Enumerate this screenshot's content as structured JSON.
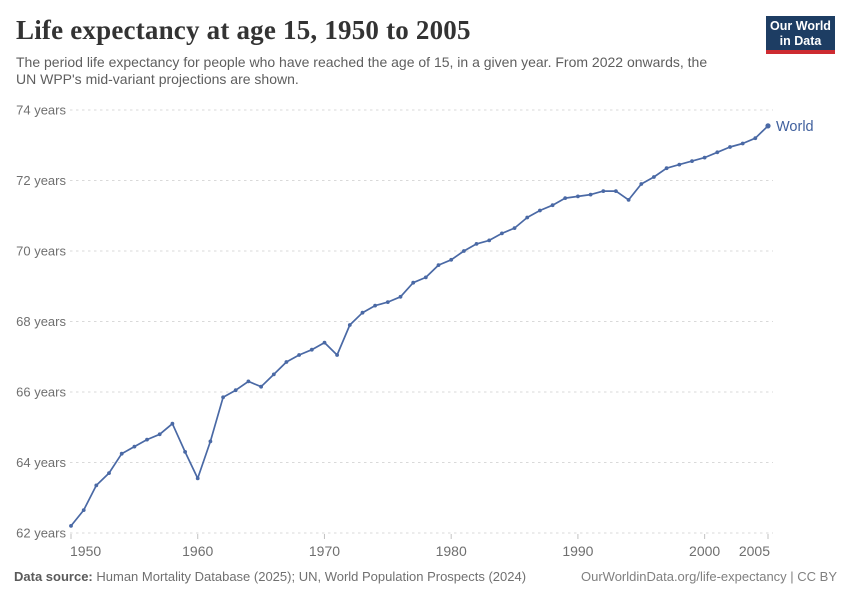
{
  "header": {
    "title": "Life expectancy at age 15, 1950 to 2005",
    "subtitle_line1": "The period life expectancy for people who have reached the age of 15, in a given year. From 2022 onwards, the",
    "subtitle_line2": "UN WPP's mid-variant projections are shown.",
    "logo": {
      "line1": "Our World",
      "line2": "in Data",
      "bg_color": "#1d3d63",
      "accent_color": "#cd2b31"
    }
  },
  "chart_data": {
    "type": "line",
    "title": "Life expectancy at age 15, 1950 to 2005",
    "xlabel": "",
    "ylabel": "",
    "xlim": [
      1950,
      2005
    ],
    "ylim": [
      62,
      74
    ],
    "grid": "horizontal-dashed",
    "legend_position": "end-of-line-label",
    "end_label": "World",
    "xticks": {
      "values": [
        1950,
        1960,
        1970,
        1980,
        1990,
        2000,
        2005
      ],
      "labels": [
        "1950",
        "1960",
        "1970",
        "1980",
        "1990",
        "2000",
        "2005"
      ]
    },
    "yticks": {
      "values": [
        62,
        64,
        66,
        68,
        70,
        72,
        74
      ],
      "labels": [
        "62 years",
        "64 years",
        "66 years",
        "68 years",
        "70 years",
        "72 years",
        "74 years"
      ]
    },
    "series": [
      {
        "name": "World",
        "color": "#4a69a5",
        "x": [
          1950,
          1951,
          1952,
          1953,
          1954,
          1955,
          1956,
          1957,
          1958,
          1959,
          1960,
          1961,
          1962,
          1963,
          1964,
          1965,
          1966,
          1967,
          1968,
          1969,
          1970,
          1971,
          1972,
          1973,
          1974,
          1975,
          1976,
          1977,
          1978,
          1979,
          1980,
          1981,
          1982,
          1983,
          1984,
          1985,
          1986,
          1987,
          1988,
          1989,
          1990,
          1991,
          1992,
          1993,
          1994,
          1995,
          1996,
          1997,
          1998,
          1999,
          2000,
          2001,
          2002,
          2003,
          2004,
          2005
        ],
        "values": [
          62.2,
          62.65,
          63.35,
          63.7,
          64.25,
          64.45,
          64.65,
          64.8,
          65.1,
          64.3,
          63.55,
          64.6,
          65.85,
          66.05,
          66.3,
          66.15,
          66.5,
          66.85,
          67.05,
          67.2,
          67.4,
          67.05,
          67.9,
          68.25,
          68.45,
          68.55,
          68.7,
          69.1,
          69.25,
          69.6,
          69.75,
          70.0,
          70.2,
          70.3,
          70.5,
          70.65,
          70.95,
          71.15,
          71.3,
          71.5,
          71.55,
          71.6,
          71.7,
          71.7,
          71.45,
          71.9,
          72.1,
          72.35,
          72.45,
          72.55,
          72.65,
          72.8,
          72.95,
          73.05,
          73.2,
          73.55
        ]
      }
    ]
  },
  "colors": {
    "line": "#4a69a5",
    "axis_text": "#6f6f6f",
    "gridline": "#d9d9d9",
    "tick_mark": "#c2c2c2",
    "end_label_text": "#41619e"
  },
  "footer": {
    "source_label": "Data source:",
    "source_text": "Human Mortality Database (2025); UN, World Population Prospects (2024)",
    "link_text": "OurWorldinData.org/life-expectancy | CC BY"
  }
}
